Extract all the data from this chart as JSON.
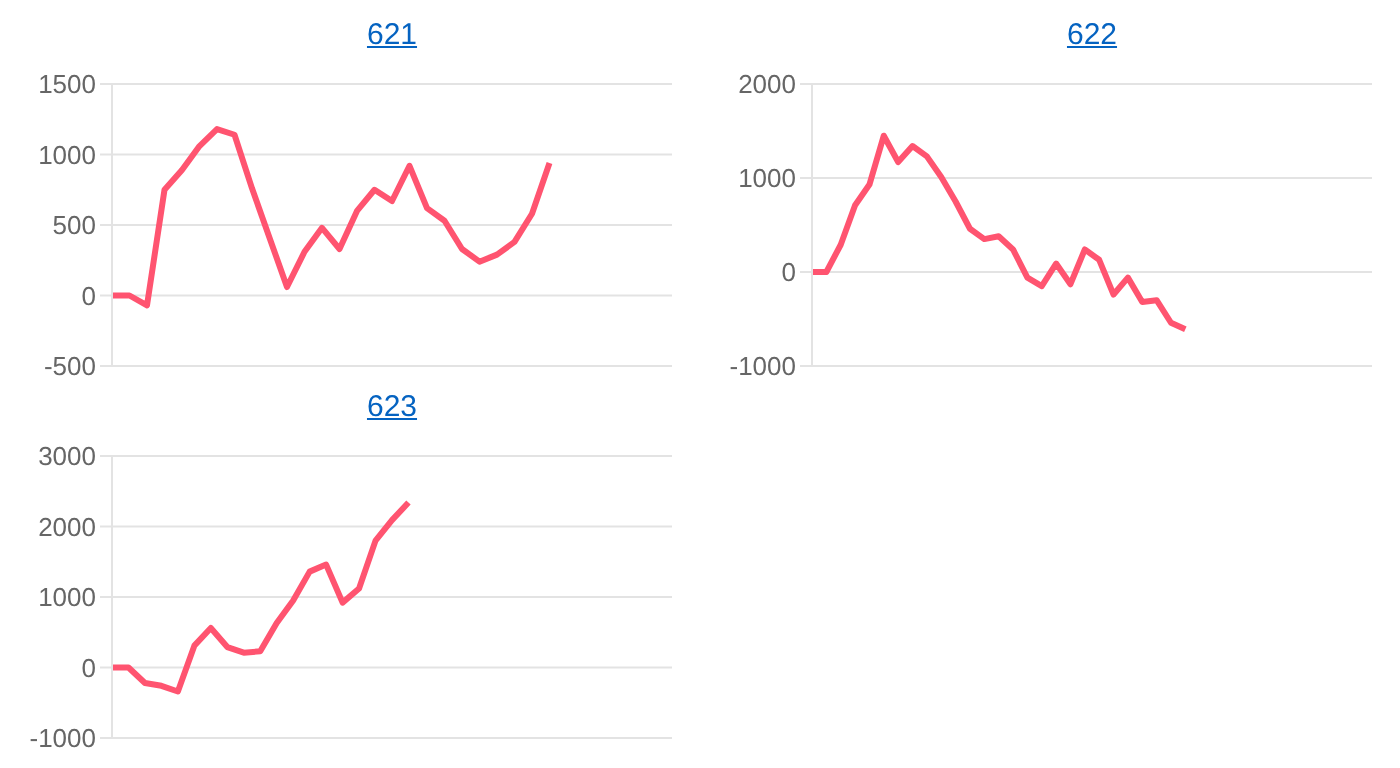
{
  "chart_data": [
    {
      "type": "line",
      "title": "621",
      "categories": [
        null,
        null,
        null,
        null,
        null,
        null,
        null,
        null,
        null,
        null,
        null,
        null,
        null,
        null,
        null,
        null,
        null,
        null,
        null,
        null,
        null,
        null,
        null,
        null,
        null,
        null,
        null,
        null,
        null,
        null,
        null,
        null,
        null
      ],
      "series": [
        {
          "color": "#ff5470",
          "values": [
            0,
            0,
            -70,
            750,
            890,
            1060,
            1180,
            1140,
            760,
            410,
            60,
            310,
            480,
            330,
            600,
            750,
            670,
            920,
            620,
            530,
            330,
            240,
            290,
            380,
            580,
            940,
            null,
            null,
            null,
            null,
            null,
            null,
            null
          ]
        }
      ],
      "ylim": [
        -500,
        1500
      ],
      "yticks": [
        -500,
        0,
        500,
        1000,
        1500
      ],
      "grid": "y",
      "tick_labels": "y",
      "marker": "none",
      "line_style": "solid",
      "legend": false
    },
    {
      "type": "line",
      "title": "622",
      "categories": [
        null,
        null,
        null,
        null,
        null,
        null,
        null,
        null,
        null,
        null,
        null,
        null,
        null,
        null,
        null,
        null,
        null,
        null,
        null,
        null,
        null,
        null,
        null,
        null,
        null,
        null,
        null,
        null,
        null,
        null,
        null,
        null,
        null,
        null,
        null,
        null,
        null,
        null,
        null,
        null
      ],
      "series": [
        {
          "color": "#ff5470",
          "values": [
            0,
            0,
            290,
            710,
            930,
            1450,
            1170,
            1340,
            1230,
            1010,
            750,
            460,
            350,
            380,
            240,
            -60,
            -150,
            90,
            -130,
            240,
            130,
            -240,
            -60,
            -320,
            -300,
            -540,
            -610,
            null,
            null,
            null,
            null,
            null,
            null,
            null,
            null,
            null,
            null,
            null,
            null,
            null
          ]
        }
      ],
      "ylim": [
        -1000,
        2000
      ],
      "yticks": [
        -1000,
        0,
        1000,
        2000
      ],
      "grid": "y",
      "tick_labels": "y",
      "marker": "none",
      "line_style": "solid",
      "legend": false
    },
    {
      "type": "line",
      "title": "623",
      "categories": [
        null,
        null,
        null,
        null,
        null,
        null,
        null,
        null,
        null,
        null,
        null,
        null,
        null,
        null,
        null,
        null,
        null,
        null,
        null,
        null,
        null,
        null,
        null,
        null,
        null,
        null,
        null,
        null,
        null,
        null,
        null,
        null,
        null,
        null,
        null
      ],
      "series": [
        {
          "color": "#ff5470",
          "values": [
            0,
            0,
            -220,
            -260,
            -340,
            310,
            560,
            290,
            210,
            230,
            630,
            950,
            1360,
            1460,
            920,
            1120,
            1800,
            2090,
            2340,
            null,
            null,
            null,
            null,
            null,
            null,
            null,
            null,
            null,
            null,
            null,
            null,
            null,
            null,
            null,
            null
          ]
        }
      ],
      "ylim": [
        -1000,
        3000
      ],
      "yticks": [
        -1000,
        0,
        1000,
        2000,
        3000
      ],
      "grid": "y",
      "tick_labels": "y",
      "marker": "none",
      "line_style": "solid",
      "legend": false
    }
  ]
}
